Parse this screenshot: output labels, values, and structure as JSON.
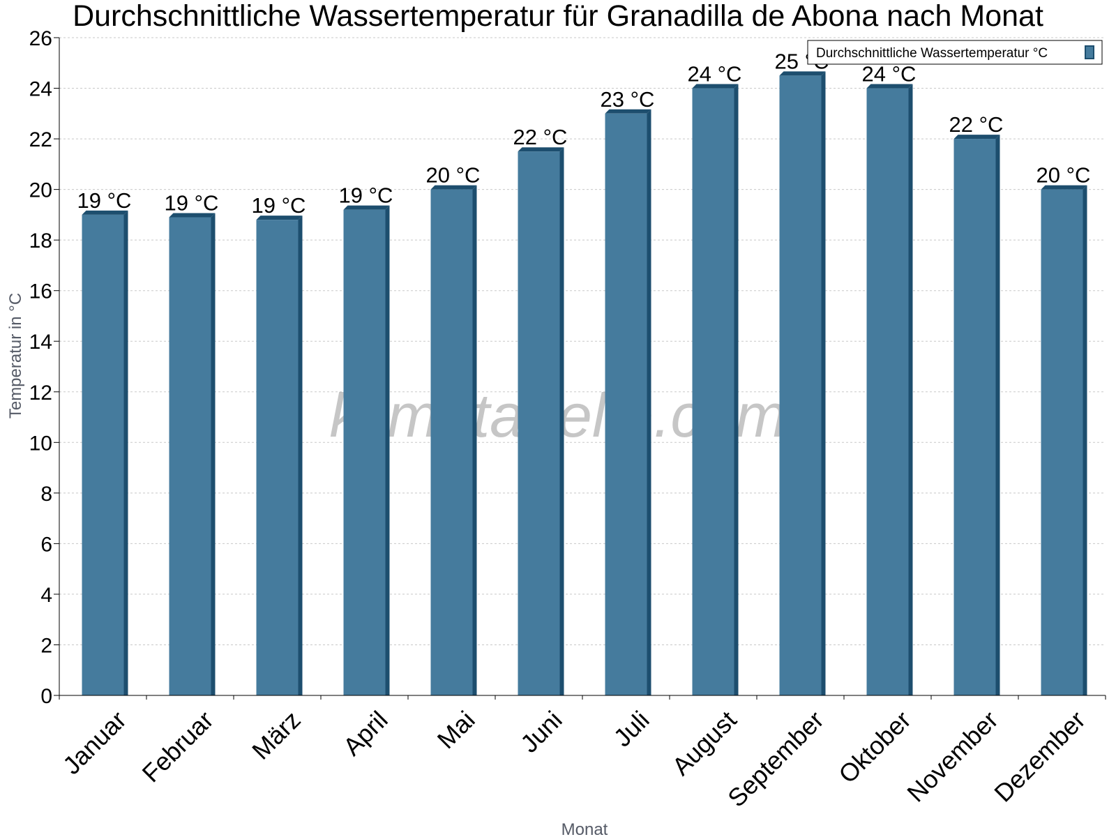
{
  "chart_data": {
    "type": "bar",
    "title": "Durchschnittliche Wassertemperatur für Granadilla de Abona nach Monat",
    "xlabel": "Monat",
    "ylabel": "Temperatur in °C",
    "categories": [
      "Januar",
      "Februar",
      "März",
      "April",
      "Mai",
      "Juni",
      "Juli",
      "August",
      "September",
      "Oktober",
      "November",
      "Dezember"
    ],
    "series": [
      {
        "name": "Durchschnittliche Wassertemperatur °C",
        "values": [
          19.0,
          18.9,
          18.8,
          19.2,
          20.0,
          21.5,
          23.0,
          24.0,
          24.5,
          24.0,
          22.0,
          20.0
        ],
        "data_labels": [
          "19 °C",
          "19 °C",
          "19 °C",
          "19 °C",
          "20 °C",
          "22 °C",
          "23 °C",
          "24 °C",
          "25 °C",
          "24 °C",
          "22 °C",
          "20 °C"
        ]
      }
    ],
    "ylim": [
      0,
      26
    ],
    "yticks": [
      0,
      2,
      4,
      6,
      8,
      10,
      12,
      14,
      16,
      18,
      20,
      22,
      24,
      26
    ],
    "grid": true,
    "legend": "top-right",
    "colors": {
      "bar": "#457b9d",
      "bar_edge": "#1d4e6e",
      "grid": "#c8c8c8",
      "axis": "#000000"
    }
  },
  "watermark": "klimatabelle.com"
}
